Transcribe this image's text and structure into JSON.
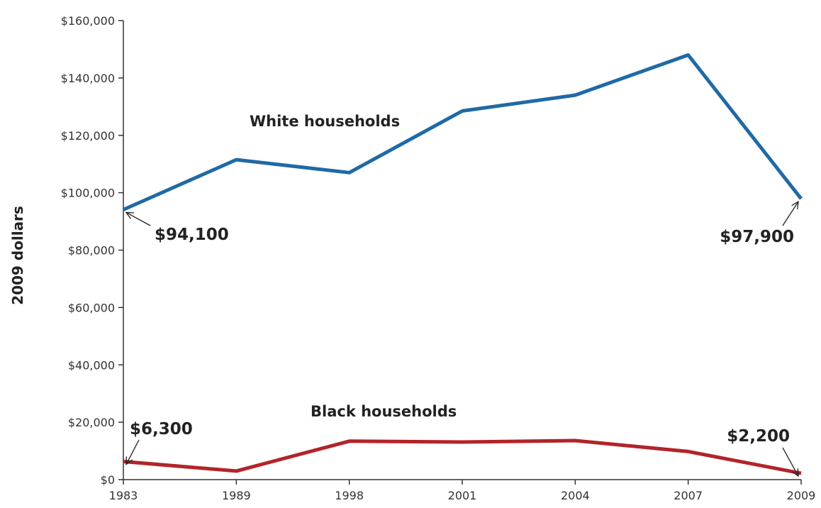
{
  "chart_data": {
    "type": "line",
    "x": [
      "1983",
      "1989",
      "1998",
      "2001",
      "2004",
      "2007",
      "2009"
    ],
    "ylabel": "2009 dollars",
    "ylim": [
      0,
      160000
    ],
    "y_ticks": [
      "$0",
      "$20,000",
      "$40,000",
      "$60,000",
      "$80,000",
      "$100,000",
      "$120,000",
      "$140,000",
      "$160,000"
    ],
    "grid": false,
    "series": [
      {
        "name": "White households",
        "color": "#1f6aa5",
        "values": [
          94100,
          111500,
          107000,
          128500,
          134000,
          148000,
          97900
        ]
      },
      {
        "name": "Black households",
        "color": "#b2242a",
        "values": [
          6300,
          3000,
          13400,
          13100,
          13600,
          9800,
          2200
        ]
      }
    ],
    "annotations": [
      {
        "series": 0,
        "point": 0,
        "text": "$94,100"
      },
      {
        "series": 0,
        "point": 6,
        "text": "$97,900"
      },
      {
        "series": 1,
        "point": 0,
        "text": "$6,300"
      },
      {
        "series": 1,
        "point": 6,
        "text": "$2,200"
      }
    ]
  }
}
